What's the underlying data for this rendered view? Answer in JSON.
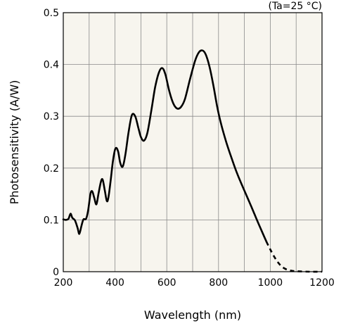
{
  "chart_data": {
    "type": "line",
    "title": "",
    "annotation": "(Ta=25 °C)",
    "xlabel": "Wavelength (nm)",
    "ylabel": "Photosensitivity (A/W)",
    "xlim": [
      200,
      1200
    ],
    "ylim": [
      0,
      0.5
    ],
    "x_ticks": [
      200,
      400,
      600,
      800,
      1000,
      1200
    ],
    "x_tick_labels": [
      "200",
      "400",
      "600",
      "800",
      "1000",
      "1200"
    ],
    "y_ticks": [
      0,
      0.1,
      0.2,
      0.3,
      0.4,
      0.5
    ],
    "y_tick_labels": [
      "0",
      "0.1",
      "0.2",
      "0.3",
      "0.4",
      "0.5"
    ],
    "grid": true,
    "background_color": "#f7f5ee",
    "line_color": "#000000",
    "series": [
      {
        "style": "solid",
        "points": [
          [
            200,
            0.101
          ],
          [
            210,
            0.1
          ],
          [
            220,
            0.102
          ],
          [
            228,
            0.112
          ],
          [
            235,
            0.104
          ],
          [
            245,
            0.099
          ],
          [
            255,
            0.085
          ],
          [
            262,
            0.073
          ],
          [
            270,
            0.088
          ],
          [
            278,
            0.101
          ],
          [
            288,
            0.102
          ],
          [
            296,
            0.118
          ],
          [
            305,
            0.15
          ],
          [
            312,
            0.155
          ],
          [
            320,
            0.142
          ],
          [
            328,
            0.13
          ],
          [
            336,
            0.15
          ],
          [
            345,
            0.173
          ],
          [
            352,
            0.178
          ],
          [
            360,
            0.158
          ],
          [
            368,
            0.137
          ],
          [
            374,
            0.142
          ],
          [
            383,
            0.175
          ],
          [
            392,
            0.214
          ],
          [
            402,
            0.238
          ],
          [
            412,
            0.232
          ],
          [
            420,
            0.21
          ],
          [
            430,
            0.203
          ],
          [
            440,
            0.226
          ],
          [
            452,
            0.268
          ],
          [
            465,
            0.302
          ],
          [
            478,
            0.3
          ],
          [
            490,
            0.278
          ],
          [
            500,
            0.26
          ],
          [
            512,
            0.253
          ],
          [
            525,
            0.268
          ],
          [
            540,
            0.31
          ],
          [
            555,
            0.356
          ],
          [
            570,
            0.385
          ],
          [
            583,
            0.393
          ],
          [
            595,
            0.38
          ],
          [
            610,
            0.348
          ],
          [
            625,
            0.325
          ],
          [
            640,
            0.315
          ],
          [
            655,
            0.318
          ],
          [
            670,
            0.333
          ],
          [
            690,
            0.372
          ],
          [
            710,
            0.408
          ],
          [
            725,
            0.424
          ],
          [
            738,
            0.427
          ],
          [
            750,
            0.42
          ],
          [
            765,
            0.396
          ],
          [
            780,
            0.36
          ],
          [
            795,
            0.318
          ],
          [
            810,
            0.285
          ],
          [
            830,
            0.25
          ],
          [
            850,
            0.22
          ],
          [
            870,
            0.192
          ],
          [
            890,
            0.168
          ],
          [
            910,
            0.145
          ],
          [
            930,
            0.122
          ],
          [
            950,
            0.098
          ],
          [
            970,
            0.075
          ],
          [
            985,
            0.058
          ]
        ]
      },
      {
        "style": "dashed",
        "points": [
          [
            985,
            0.058
          ],
          [
            1000,
            0.043
          ],
          [
            1020,
            0.025
          ],
          [
            1040,
            0.012
          ],
          [
            1060,
            0.005
          ],
          [
            1080,
            0.002
          ],
          [
            1100,
            0.001
          ],
          [
            1150,
            0.0
          ],
          [
            1200,
            0.0
          ]
        ]
      }
    ]
  }
}
